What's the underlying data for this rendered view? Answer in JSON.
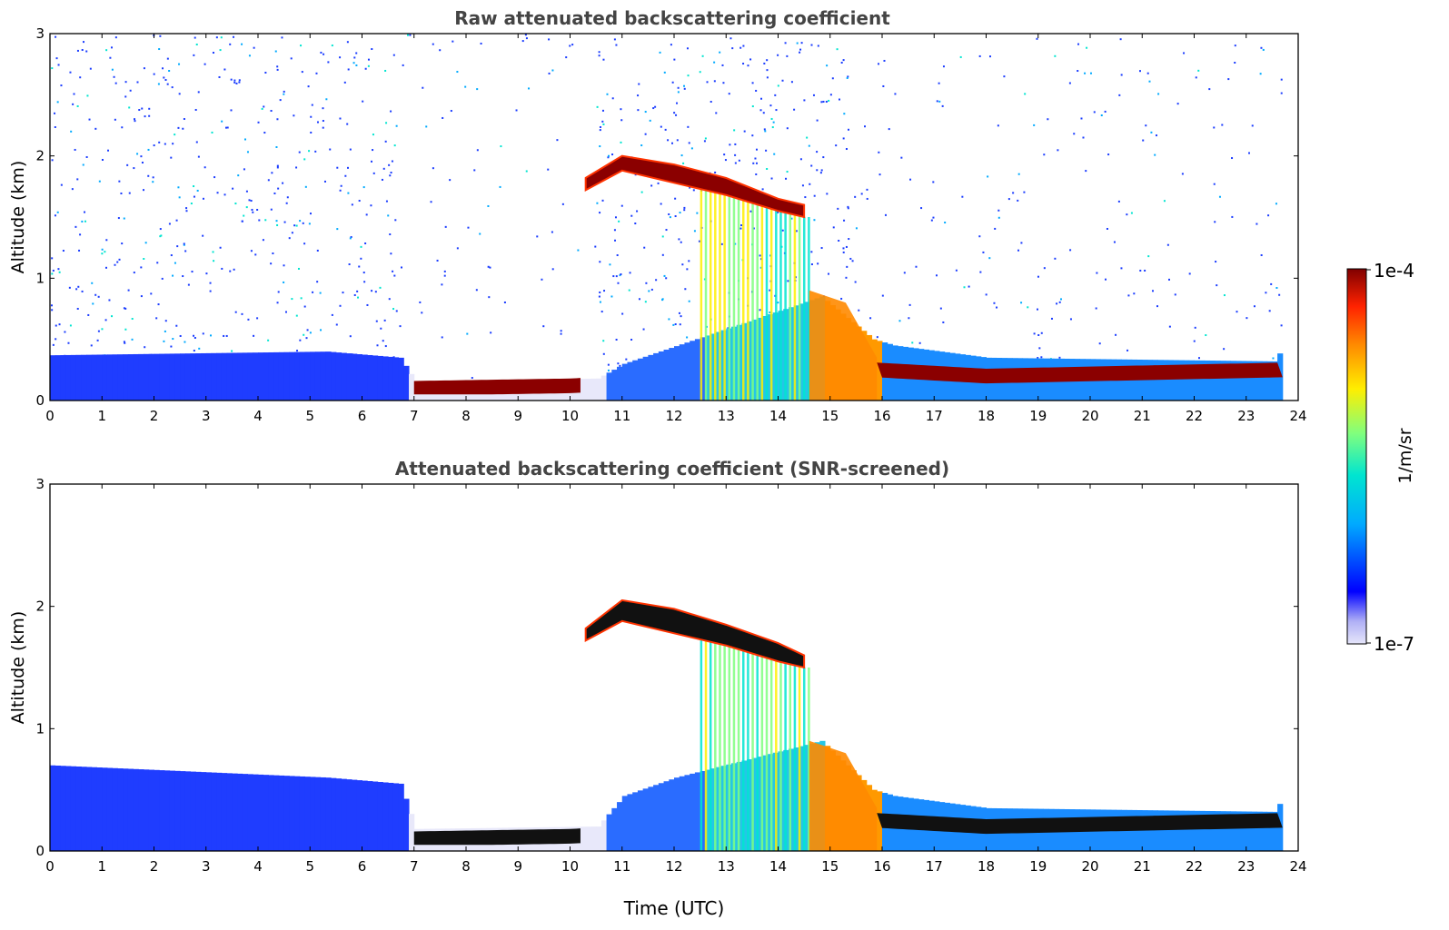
{
  "figure": {
    "colorbar": {
      "label": "1/m/sr",
      "max_label": "1e-4",
      "min_label": "1e-7",
      "scale": "log",
      "range": [
        1e-07,
        0.0001
      ],
      "colormap": [
        "#e6e6fa",
        "#0000ff",
        "#00aaff",
        "#00e5d0",
        "#7fff7f",
        "#ffee00",
        "#ff8800",
        "#ff2200",
        "#800000"
      ]
    }
  },
  "chart_data": [
    {
      "type": "heatmap",
      "title": "Raw attenuated backscattering coefficient",
      "xlabel": "",
      "ylabel": "Altitude (km)",
      "xlim": [
        0,
        24
      ],
      "ylim": [
        0,
        3
      ],
      "x_ticks": [
        "0",
        "1",
        "2",
        "3",
        "4",
        "5",
        "6",
        "7",
        "8",
        "9",
        "10",
        "11",
        "12",
        "13",
        "14",
        "15",
        "16",
        "17",
        "18",
        "19",
        "20",
        "21",
        "22",
        "23",
        "24"
      ],
      "y_ticks": [
        "0",
        "1",
        "2",
        "3"
      ],
      "features": {
        "boundary_layer": [
          [
            0,
            0.37
          ],
          [
            5.3,
            0.4
          ],
          [
            6.7,
            0.35
          ],
          [
            7,
            0.15
          ],
          [
            10.5,
            0.18
          ],
          [
            11,
            0.3
          ],
          [
            14.8,
            0.85
          ],
          [
            15.8,
            0.5
          ],
          [
            16.2,
            0.45
          ],
          [
            18,
            0.35
          ],
          [
            23.5,
            0.32
          ],
          [
            23.7,
            0.45
          ]
        ],
        "cloud_top": [
          [
            10.3,
            1.82
          ],
          [
            11,
            2
          ],
          [
            12,
            1.93
          ],
          [
            13,
            1.82
          ],
          [
            14,
            1.65
          ],
          [
            14.5,
            1.6
          ]
        ],
        "cloud_bottom": [
          [
            10.3,
            1.72
          ],
          [
            11,
            1.88
          ],
          [
            12,
            1.78
          ],
          [
            13,
            1.68
          ],
          [
            14,
            1.55
          ],
          [
            14.5,
            1.5
          ]
        ],
        "low_layer": [
          [
            7,
            0.1
          ],
          [
            10,
            0.12
          ],
          [
            15.9,
            0.25
          ],
          [
            18,
            0.2
          ],
          [
            23.7,
            0.25
          ]
        ],
        "noise_density": 0.18
      }
    },
    {
      "type": "heatmap",
      "title": "Attenuated backscattering coefficient (SNR-screened)",
      "xlabel": "Time (UTC)",
      "ylabel": "Altitude (km)",
      "xlim": [
        0,
        24
      ],
      "ylim": [
        0,
        3
      ],
      "x_ticks": [
        "0",
        "1",
        "2",
        "3",
        "4",
        "5",
        "6",
        "7",
        "8",
        "9",
        "10",
        "11",
        "12",
        "13",
        "14",
        "15",
        "16",
        "17",
        "18",
        "19",
        "20",
        "21",
        "22",
        "23",
        "24"
      ],
      "y_ticks": [
        "0",
        "1",
        "2",
        "3"
      ],
      "features": {
        "boundary_layer": [
          [
            0,
            0.7
          ],
          [
            5.3,
            0.6
          ],
          [
            6.7,
            0.55
          ],
          [
            7,
            0.18
          ],
          [
            10.5,
            0.2
          ],
          [
            11,
            0.45
          ],
          [
            12,
            0.6
          ],
          [
            14.8,
            0.9
          ],
          [
            15.8,
            0.5
          ],
          [
            16.2,
            0.45
          ],
          [
            18,
            0.35
          ],
          [
            23.5,
            0.32
          ],
          [
            23.7,
            0.45
          ]
        ],
        "cloud_top": [
          [
            10.3,
            1.82
          ],
          [
            11,
            2.05
          ],
          [
            12,
            1.98
          ],
          [
            13,
            1.85
          ],
          [
            14,
            1.7
          ],
          [
            14.5,
            1.6
          ]
        ],
        "cloud_bottom": [
          [
            10.3,
            1.72
          ],
          [
            11,
            1.88
          ],
          [
            12,
            1.78
          ],
          [
            13,
            1.68
          ],
          [
            14,
            1.55
          ],
          [
            14.5,
            1.5
          ]
        ],
        "low_layer": [
          [
            7,
            0.1
          ],
          [
            10,
            0.12
          ],
          [
            15.9,
            0.25
          ],
          [
            18,
            0.2
          ],
          [
            23.7,
            0.25
          ]
        ],
        "noise_density": 0
      }
    }
  ]
}
